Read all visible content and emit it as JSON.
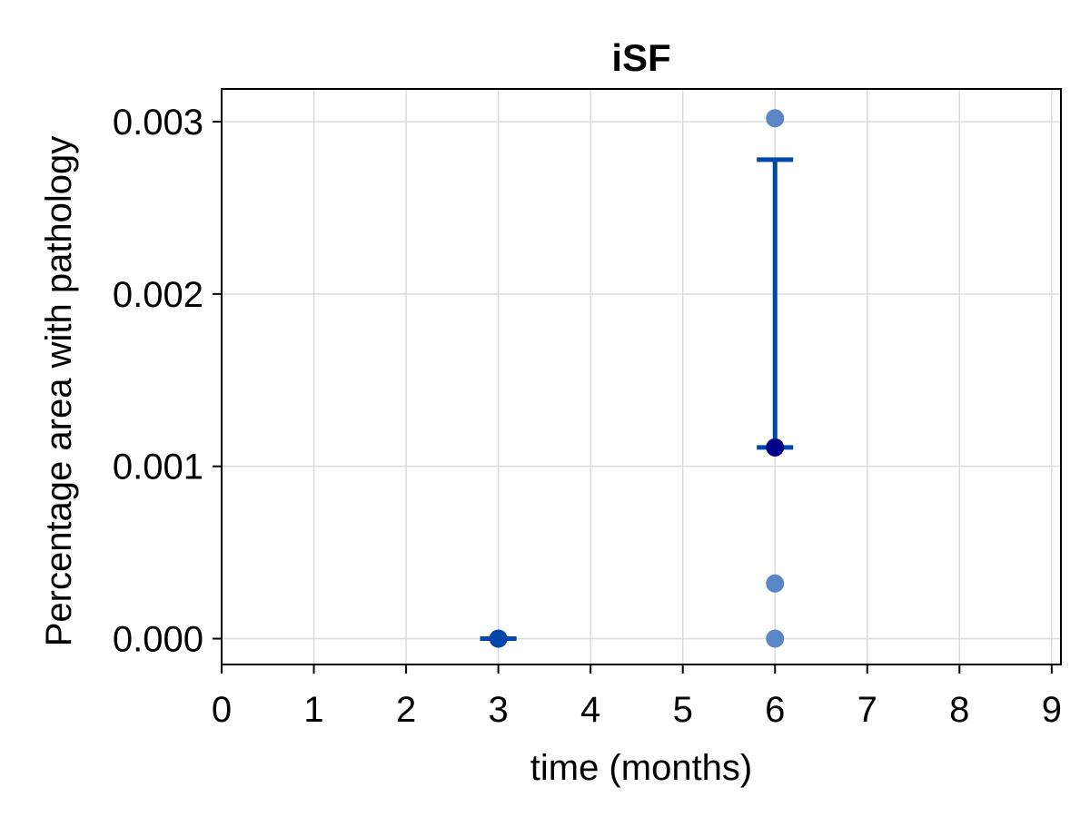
{
  "chart_data": {
    "type": "scatter",
    "title": "iSF",
    "xlabel": "time (months)",
    "ylabel": "Percentage area with pathology",
    "xlim": [
      0,
      9.1
    ],
    "ylim": [
      -0.00015,
      0.00319
    ],
    "xticks": [
      0,
      1,
      2,
      3,
      4,
      5,
      6,
      7,
      8,
      9
    ],
    "xtick_labels": [
      "0",
      "1",
      "2",
      "3",
      "4",
      "5",
      "6",
      "7",
      "8",
      "9"
    ],
    "yticks": [
      0.0,
      0.001,
      0.002,
      0.003
    ],
    "ytick_labels": [
      "0.000",
      "0.001",
      "0.002",
      "0.003"
    ],
    "grid": true,
    "series": [
      {
        "kind": "individual points",
        "color": "#5b87c7",
        "points": [
          {
            "x": 6,
            "y": 0.00302
          },
          {
            "x": 6,
            "y": 0.00032
          },
          {
            "x": 6,
            "y": 0.0
          }
        ]
      },
      {
        "kind": "mean with error bars",
        "color": "#0047ab",
        "point_color": "#00008b",
        "points": [
          {
            "x": 3,
            "y": 0.0,
            "low": 0.0,
            "high": 0.0
          },
          {
            "x": 6,
            "y": 0.00111,
            "low": 0.00111,
            "high": 0.00278
          }
        ]
      }
    ]
  }
}
